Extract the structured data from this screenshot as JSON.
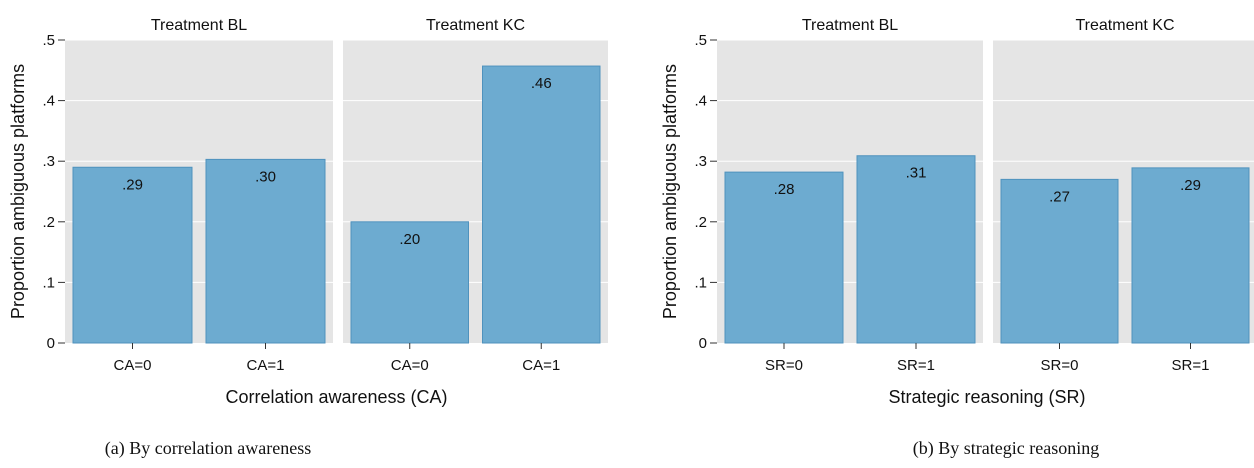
{
  "figure": {
    "captions": [
      "(a)  By correlation awareness",
      "(b)  By strategic reasoning"
    ]
  },
  "chart_data": [
    {
      "type": "bar",
      "ylabel": "Proportion ambiguous platforms",
      "xlabel": "Correlation awareness (CA)",
      "ylim": [
        0,
        0.5
      ],
      "yticks": [
        0,
        0.1,
        0.2,
        0.3,
        0.4,
        0.5
      ],
      "ytick_labels": [
        "0",
        ".1",
        ".2",
        ".3",
        ".4",
        ".5"
      ],
      "grid": true,
      "facets": [
        {
          "title": "Treatment BL",
          "categories": [
            "CA=0",
            "CA=1"
          ],
          "values": [
            0.29,
            0.303
          ],
          "value_labels": [
            ".29",
            ".30"
          ]
        },
        {
          "title": "Treatment KC",
          "categories": [
            "CA=0",
            "CA=1"
          ],
          "values": [
            0.2,
            0.457
          ],
          "value_labels": [
            ".20",
            ".46"
          ]
        }
      ]
    },
    {
      "type": "bar",
      "ylabel": "Proportion ambiguous platforms",
      "xlabel": "Strategic reasoning (SR)",
      "ylim": [
        0,
        0.5
      ],
      "yticks": [
        0,
        0.1,
        0.2,
        0.3,
        0.4,
        0.5
      ],
      "ytick_labels": [
        "0",
        ".1",
        ".2",
        ".3",
        ".4",
        ".5"
      ],
      "grid": true,
      "facets": [
        {
          "title": "Treatment BL",
          "categories": [
            "SR=0",
            "SR=1"
          ],
          "values": [
            0.282,
            0.309
          ],
          "value_labels": [
            ".28",
            ".31"
          ]
        },
        {
          "title": "Treatment KC",
          "categories": [
            "SR=0",
            "SR=1"
          ],
          "values": [
            0.27,
            0.289
          ],
          "value_labels": [
            ".27",
            ".29"
          ]
        }
      ]
    }
  ]
}
